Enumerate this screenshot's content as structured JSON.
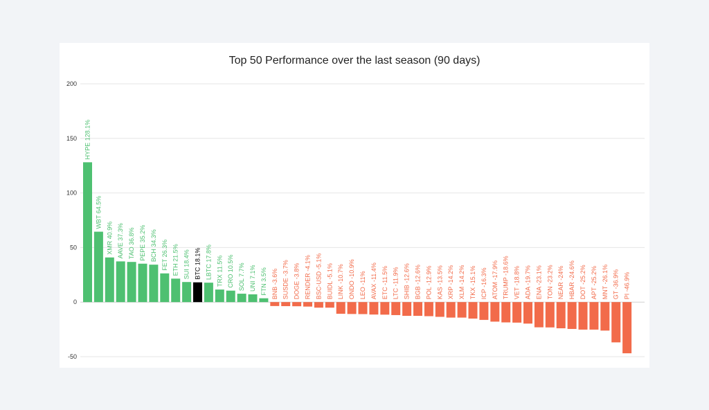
{
  "chart_data": {
    "type": "bar",
    "title": "Top 50 Performance over the last season (90 days)",
    "xlabel": "",
    "ylabel": "",
    "ylim": [
      -50,
      200
    ],
    "yticks": [
      -50,
      0,
      50,
      100,
      150,
      200
    ],
    "grid": true,
    "colors": {
      "positive": "#4ec071",
      "negative": "#f26b4a",
      "highlight": "#000000"
    },
    "highlight": "BTC",
    "bars": [
      {
        "name": "HYPE",
        "value": 128.1,
        "label": "HYPE 128.1%"
      },
      {
        "name": "WBT",
        "value": 64.5,
        "label": "WBT 64.5%"
      },
      {
        "name": "XMR",
        "value": 40.9,
        "label": "XMR 40.9%"
      },
      {
        "name": "AAVE",
        "value": 37.3,
        "label": "AAVE 37.3%"
      },
      {
        "name": "TAO",
        "value": 36.8,
        "label": "TAO 36.8%"
      },
      {
        "name": "PEPE",
        "value": 35.2,
        "label": "PEPE 35.2%"
      },
      {
        "name": "BCH",
        "value": 34.3,
        "label": "BCH 34.3%"
      },
      {
        "name": "FET",
        "value": 26.3,
        "label": "FET 26.3%"
      },
      {
        "name": "ETH",
        "value": 21.5,
        "label": "ETH 21.5%"
      },
      {
        "name": "SUI",
        "value": 18.4,
        "label": "SUI 18.4%"
      },
      {
        "name": "BTC",
        "value": 18.1,
        "label": "BTC 18.1%"
      },
      {
        "name": "LBTC",
        "value": 17.8,
        "label": "LBTC 17.8%"
      },
      {
        "name": "TRX",
        "value": 11.5,
        "label": "TRX 11.5%"
      },
      {
        "name": "CRO",
        "value": 10.5,
        "label": "CRO 10.5%"
      },
      {
        "name": "SOL",
        "value": 7.7,
        "label": "SOL 7.7%"
      },
      {
        "name": "UNI",
        "value": 7.1,
        "label": "UNI 7.1%"
      },
      {
        "name": "FTN",
        "value": 3.5,
        "label": "FTN 3.5%"
      },
      {
        "name": "BNB",
        "value": -3.6,
        "label": "BNB -3.6%"
      },
      {
        "name": "SUSDE",
        "value": -3.7,
        "label": "SUSDE -3.7%"
      },
      {
        "name": "DOGE",
        "value": -3.8,
        "label": "DOGE -3.8%"
      },
      {
        "name": "RENDER",
        "value": -4.1,
        "label": "RENDER -4.1%"
      },
      {
        "name": "BSC-USD",
        "value": -5.1,
        "label": "BSC-USD -5.1%"
      },
      {
        "name": "BUIDL",
        "value": -5.1,
        "label": "BUIDL -5.1%"
      },
      {
        "name": "LINK",
        "value": -10.7,
        "label": "LINK -10.7%"
      },
      {
        "name": "ONDO",
        "value": -10.9,
        "label": "ONDO -10.9%"
      },
      {
        "name": "LEO",
        "value": -11,
        "label": "LEO -11%"
      },
      {
        "name": "AVAX",
        "value": -11.4,
        "label": "AVAX -11.4%"
      },
      {
        "name": "ETC",
        "value": -11.5,
        "label": "ETC -11.5%"
      },
      {
        "name": "LTC",
        "value": -11.9,
        "label": "LTC -11.9%"
      },
      {
        "name": "SHIB",
        "value": -12.6,
        "label": "SHIB -12.6%"
      },
      {
        "name": "BGB",
        "value": -12.6,
        "label": "BGB -12.6%"
      },
      {
        "name": "POL",
        "value": -12.9,
        "label": "POL -12.9%"
      },
      {
        "name": "KAS",
        "value": -13.5,
        "label": "KAS -13.5%"
      },
      {
        "name": "XRP",
        "value": -14.2,
        "label": "XRP -14.2%"
      },
      {
        "name": "XLM",
        "value": -14.2,
        "label": "XLM -14.2%"
      },
      {
        "name": "TKX",
        "value": -15.1,
        "label": "TKX -15.1%"
      },
      {
        "name": "ICP",
        "value": -16.3,
        "label": "ICP -16.3%"
      },
      {
        "name": "ATOM",
        "value": -17.9,
        "label": "ATOM -17.9%"
      },
      {
        "name": "TRUMP",
        "value": -18.6,
        "label": "TRUMP -18.6%"
      },
      {
        "name": "VET",
        "value": -18.8,
        "label": "VET -18.8%"
      },
      {
        "name": "ADA",
        "value": -19.7,
        "label": "ADA -19.7%"
      },
      {
        "name": "ENA",
        "value": -23.1,
        "label": "ENA -23.1%"
      },
      {
        "name": "TON",
        "value": -23.2,
        "label": "TON -23.2%"
      },
      {
        "name": "NEAR",
        "value": -24,
        "label": "NEAR -24%"
      },
      {
        "name": "HBAR",
        "value": -24.6,
        "label": "HBAR -24.6%"
      },
      {
        "name": "DOT",
        "value": -25.2,
        "label": "DOT -25.2%"
      },
      {
        "name": "APT",
        "value": -25.2,
        "label": "APT -25.2%"
      },
      {
        "name": "MNT",
        "value": -26.1,
        "label": "MNT -26.1%"
      },
      {
        "name": "GT",
        "value": -36.9,
        "label": "GT -36.9%"
      },
      {
        "name": "PI",
        "value": -46.9,
        "label": "PI -46.9%"
      }
    ]
  }
}
